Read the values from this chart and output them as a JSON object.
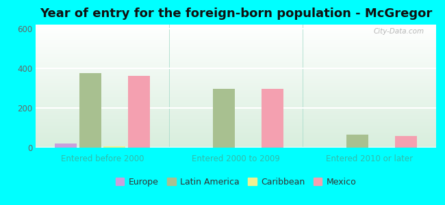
{
  "title": "Year of entry for the foreign-born population - McGregor",
  "background_color": "#00FFFF",
  "categories": [
    "Entered before 2000",
    "Entered 2000 to 2009",
    "Entered 2010 or later"
  ],
  "series": {
    "Europe": [
      22,
      0,
      0
    ],
    "Latin America": [
      375,
      295,
      65
    ],
    "Caribbean": [
      8,
      0,
      0
    ],
    "Mexico": [
      360,
      295,
      60
    ]
  },
  "colors": {
    "Europe": "#c9a0dc",
    "Latin America": "#a8c090",
    "Caribbean": "#f0f090",
    "Mexico": "#f4a0b0"
  },
  "ylim": [
    0,
    620
  ],
  "yticks": [
    0,
    200,
    400,
    600
  ],
  "xlabel_color": "#33BBAA",
  "title_fontsize": 13,
  "tick_label_fontsize": 8.5,
  "legend_fontsize": 9,
  "bar_width": 0.22,
  "watermark": "City-Data.com"
}
